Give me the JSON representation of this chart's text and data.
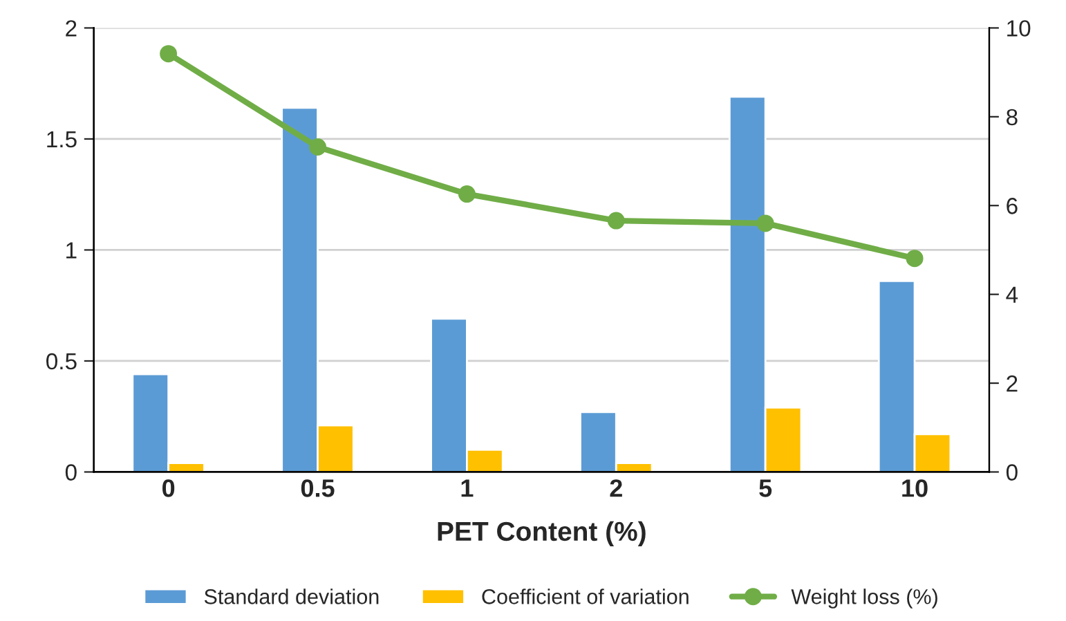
{
  "chart_data": {
    "type": "bar",
    "xlabel": "PET Content (%)",
    "categories": [
      "0",
      "0.5",
      "1",
      "2",
      "5",
      "10"
    ],
    "series": [
      {
        "name": "Standard deviation",
        "color": "#5b9bd5",
        "values": [
          0.44,
          1.64,
          0.69,
          0.27,
          1.69,
          0.86
        ]
      },
      {
        "name": "Coefficient of variation",
        "color": "#ffc000",
        "values": [
          0.04,
          0.21,
          0.1,
          0.04,
          0.29,
          0.17
        ]
      },
      {
        "name": "Weight loss (%)",
        "color": "#70ad47",
        "type": "line",
        "axis": "y2",
        "marker": "circle",
        "values": [
          9.42,
          7.32,
          6.26,
          5.66,
          5.6,
          4.81
        ]
      }
    ],
    "ylim": [
      0,
      2
    ],
    "yticks": [
      0,
      0.5,
      1,
      1.5,
      2
    ],
    "y2lim": [
      0,
      10
    ],
    "y2ticks": [
      0,
      2,
      4,
      6,
      8,
      10
    ],
    "grid": "y",
    "legend": "bottom"
  }
}
